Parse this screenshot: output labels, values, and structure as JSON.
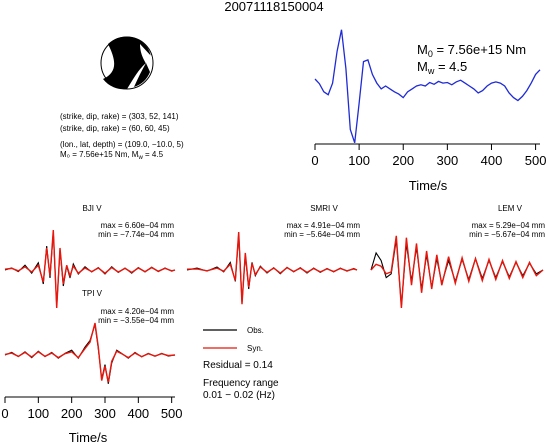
{
  "title": "20071118150004",
  "focal_mechanism": {
    "lines": [
      "(strike, dip, rake) = (303, 52, 141)",
      "(strike, dip, rake) = (60, 60, 45)",
      "(lon., lat, depth) = (109.0, −10.0, 5)"
    ],
    "moment_text": "M₀ = 7.56e+15 Nm, M",
    "moment_mw": " = 4.5",
    "moment_sub": "w"
  },
  "source_time_function": {
    "m0_label": "M",
    "m0_sub": "0",
    "m0_value": " = 7.56e+15 Nm",
    "mw_label": "M",
    "mw_sub": "w",
    "mw_value": " = 4.5",
    "xlabel": "Time/s",
    "xticks": [
      "0",
      "100",
      "200",
      "300",
      "400",
      "500"
    ]
  },
  "stations": [
    {
      "name": "BJI V",
      "max": "max = 6.60e−04 mm",
      "min": "min = −7.74e−04 mm"
    },
    {
      "name": "SMRI V",
      "max": "max = 4.91e−04 mm",
      "min": "min = −5.64e−04 mm"
    },
    {
      "name": "LEM V",
      "max": "max = 5.29e−04 mm",
      "min": "min = −5.67e−04 mm"
    },
    {
      "name": "TPI V",
      "max": "max = 4.20e−04 mm",
      "min": "min = −3.55e−04 mm"
    }
  ],
  "legend": {
    "obs_label": "Obs.",
    "syn_label": "Syn.",
    "obs_color": "#000000",
    "syn_color": "#e8160c",
    "stf_color": "#1f2bd6"
  },
  "residual": "Residual = 0.14",
  "frequency_label": "Frequency range",
  "frequency_value": "0.01 − 0.02 (Hz)",
  "waveform_axis": {
    "xlabel": "Time/s",
    "xticks": [
      "0",
      "100",
      "200",
      "300",
      "400",
      "500"
    ]
  },
  "chart_data": [
    {
      "type": "line",
      "title": "",
      "xlabel": "Time/s",
      "ylabel": "",
      "xlim": [
        0,
        510
      ],
      "ylim": [
        -1.0,
        1.0
      ],
      "grid": false,
      "series": [
        {
          "x": [
            0,
            10,
            20,
            30,
            40,
            50,
            60,
            70,
            80,
            90,
            100,
            110,
            120,
            130,
            140,
            150,
            160,
            170,
            180,
            190,
            200,
            210,
            220,
            230,
            240,
            250,
            260,
            270,
            280,
            290,
            300,
            310,
            320,
            330,
            340,
            350,
            360,
            370,
            380,
            390,
            400,
            410,
            420,
            430,
            440,
            450,
            460,
            470,
            480,
            490,
            500,
            510
          ],
          "y": [
            0.12,
            0.04,
            -0.1,
            -0.15,
            0.05,
            0.6,
            0.97,
            0.3,
            -0.75,
            -0.98,
            -0.3,
            0.42,
            0.45,
            0.2,
            0.05,
            -0.05,
            0.0,
            -0.05,
            -0.1,
            -0.14,
            -0.2,
            -0.1,
            -0.05,
            0.0,
            0.02,
            0.0,
            0.06,
            0.03,
            0.08,
            0.05,
            0.06,
            0.02,
            0.07,
            0.1,
            0.05,
            0.0,
            -0.05,
            -0.12,
            -0.08,
            0.0,
            0.05,
            0.07,
            0.05,
            0.0,
            -0.12,
            -0.2,
            -0.25,
            -0.18,
            -0.08,
            0.05,
            0.2,
            0.28
          ]
        }
      ]
    },
    {
      "type": "line",
      "title": "BJI V",
      "xlim": [
        0,
        510
      ],
      "series": [
        {
          "name": "Obs.",
          "x": [
            0,
            20,
            40,
            60,
            80,
            100,
            115,
            125,
            135,
            145,
            155,
            165,
            175,
            185,
            195,
            205,
            220,
            240,
            260,
            280,
            300,
            320,
            340,
            360,
            380,
            400,
            420,
            440,
            460,
            480,
            500,
            510
          ],
          "y": [
            0.0,
            0.05,
            -0.04,
            0.12,
            -0.08,
            0.18,
            -0.35,
            0.6,
            -0.2,
            0.95,
            -0.9,
            0.5,
            -0.4,
            0.1,
            -0.2,
            0.15,
            -0.1,
            0.08,
            -0.05,
            0.06,
            -0.1,
            0.08,
            -0.06,
            0.05,
            -0.08,
            0.06,
            -0.05,
            0.07,
            -0.04,
            0.05,
            -0.03,
            0.0
          ]
        },
        {
          "name": "Syn.",
          "x": [
            0,
            20,
            40,
            60,
            80,
            100,
            115,
            125,
            135,
            145,
            155,
            165,
            175,
            185,
            195,
            205,
            220,
            240,
            260,
            280,
            300,
            320,
            340,
            360,
            380,
            400,
            420,
            440,
            460,
            480,
            500,
            510
          ],
          "y": [
            0.02,
            0.04,
            -0.02,
            0.08,
            -0.05,
            0.12,
            -0.3,
            0.55,
            -0.15,
            1.0,
            -0.95,
            0.55,
            -0.35,
            0.12,
            -0.15,
            0.1,
            -0.08,
            0.05,
            -0.04,
            0.05,
            -0.08,
            0.06,
            -0.05,
            0.04,
            -0.06,
            0.05,
            -0.04,
            0.06,
            -0.03,
            0.04,
            -0.02,
            0.0
          ]
        }
      ]
    },
    {
      "type": "line",
      "title": "SMRI V",
      "xlim": [
        0,
        510
      ],
      "series": [
        {
          "name": "Obs.",
          "x": [
            0,
            30,
            60,
            90,
            110,
            130,
            145,
            155,
            165,
            175,
            185,
            195,
            205,
            220,
            240,
            260,
            280,
            300,
            320,
            340,
            360,
            380,
            400,
            420,
            440,
            460,
            480,
            500,
            510
          ],
          "y": [
            0.0,
            0.05,
            -0.03,
            0.08,
            -0.05,
            0.2,
            -0.3,
            0.95,
            -0.85,
            0.4,
            -0.5,
            0.2,
            -0.15,
            0.1,
            -0.08,
            0.06,
            -0.1,
            0.07,
            -0.05,
            0.06,
            -0.08,
            0.05,
            -0.06,
            0.04,
            -0.05,
            0.05,
            -0.03,
            0.04,
            0.0
          ]
        },
        {
          "name": "Syn.",
          "x": [
            0,
            30,
            60,
            90,
            110,
            130,
            145,
            155,
            165,
            175,
            185,
            195,
            205,
            220,
            240,
            260,
            280,
            300,
            320,
            340,
            360,
            380,
            400,
            420,
            440,
            460,
            480,
            500,
            510
          ],
          "y": [
            0.02,
            0.03,
            -0.02,
            0.05,
            -0.03,
            0.15,
            -0.28,
            1.0,
            -0.9,
            0.45,
            -0.45,
            0.18,
            -0.12,
            0.08,
            -0.06,
            0.05,
            -0.08,
            0.06,
            -0.04,
            0.05,
            -0.06,
            0.04,
            -0.05,
            0.03,
            -0.04,
            0.04,
            -0.02,
            0.03,
            0.0
          ]
        }
      ]
    },
    {
      "type": "line",
      "title": "LEM V",
      "xlim": [
        0,
        510
      ],
      "series": [
        {
          "name": "Obs.",
          "x": [
            0,
            15,
            30,
            45,
            60,
            75,
            90,
            105,
            120,
            135,
            150,
            165,
            180,
            195,
            210,
            230,
            250,
            270,
            290,
            310,
            330,
            350,
            370,
            390,
            410,
            430,
            450,
            470,
            490,
            510
          ],
          "y": [
            0.0,
            0.45,
            0.25,
            -0.2,
            -0.1,
            0.8,
            -0.95,
            0.7,
            -0.3,
            0.6,
            -0.5,
            0.4,
            -0.45,
            0.3,
            -0.35,
            0.25,
            -0.3,
            0.28,
            -0.25,
            0.3,
            -0.22,
            0.25,
            -0.2,
            0.22,
            -0.18,
            0.2,
            -0.15,
            0.18,
            -0.1,
            0.0
          ]
        },
        {
          "name": "Syn.",
          "x": [
            0,
            15,
            30,
            45,
            60,
            75,
            90,
            105,
            120,
            135,
            150,
            165,
            180,
            195,
            210,
            230,
            250,
            270,
            290,
            310,
            330,
            350,
            370,
            390,
            410,
            430,
            450,
            470,
            490,
            510
          ],
          "y": [
            0.0,
            0.15,
            0.1,
            -0.1,
            -0.05,
            0.9,
            -1.0,
            0.85,
            -0.4,
            0.7,
            -0.6,
            0.5,
            -0.5,
            0.4,
            -0.4,
            0.35,
            -0.35,
            0.32,
            -0.3,
            0.3,
            -0.28,
            0.28,
            -0.25,
            0.25,
            -0.22,
            0.22,
            -0.2,
            0.2,
            -0.15,
            0.0
          ]
        }
      ]
    },
    {
      "type": "line",
      "title": "TPI V",
      "xlim": [
        0,
        510
      ],
      "series": [
        {
          "name": "Obs.",
          "x": [
            0,
            20,
            40,
            60,
            80,
            100,
            120,
            140,
            160,
            180,
            200,
            220,
            240,
            255,
            270,
            280,
            290,
            300,
            310,
            320,
            335,
            350,
            370,
            390,
            410,
            430,
            450,
            470,
            490,
            510
          ],
          "y": [
            0.0,
            0.08,
            -0.05,
            0.1,
            -0.08,
            0.12,
            -0.05,
            0.08,
            -0.1,
            0.05,
            0.15,
            -0.1,
            0.25,
            0.45,
            0.95,
            0.2,
            -0.75,
            -0.3,
            -0.9,
            -0.25,
            0.15,
            0.05,
            -0.1,
            0.08,
            -0.06,
            0.05,
            -0.04,
            0.05,
            -0.03,
            0.0
          ]
        },
        {
          "name": "Syn.",
          "x": [
            0,
            20,
            40,
            60,
            80,
            100,
            120,
            140,
            160,
            180,
            200,
            220,
            240,
            255,
            270,
            280,
            290,
            300,
            310,
            320,
            335,
            350,
            370,
            390,
            410,
            430,
            450,
            470,
            490,
            510
          ],
          "y": [
            0.02,
            0.06,
            -0.04,
            0.08,
            -0.06,
            0.1,
            -0.04,
            0.06,
            -0.08,
            0.04,
            0.1,
            -0.08,
            0.2,
            0.4,
            1.0,
            0.25,
            -0.8,
            -0.35,
            -0.85,
            -0.2,
            0.12,
            0.04,
            -0.08,
            0.06,
            -0.05,
            0.04,
            -0.03,
            0.04,
            -0.02,
            0.0
          ]
        }
      ]
    }
  ]
}
